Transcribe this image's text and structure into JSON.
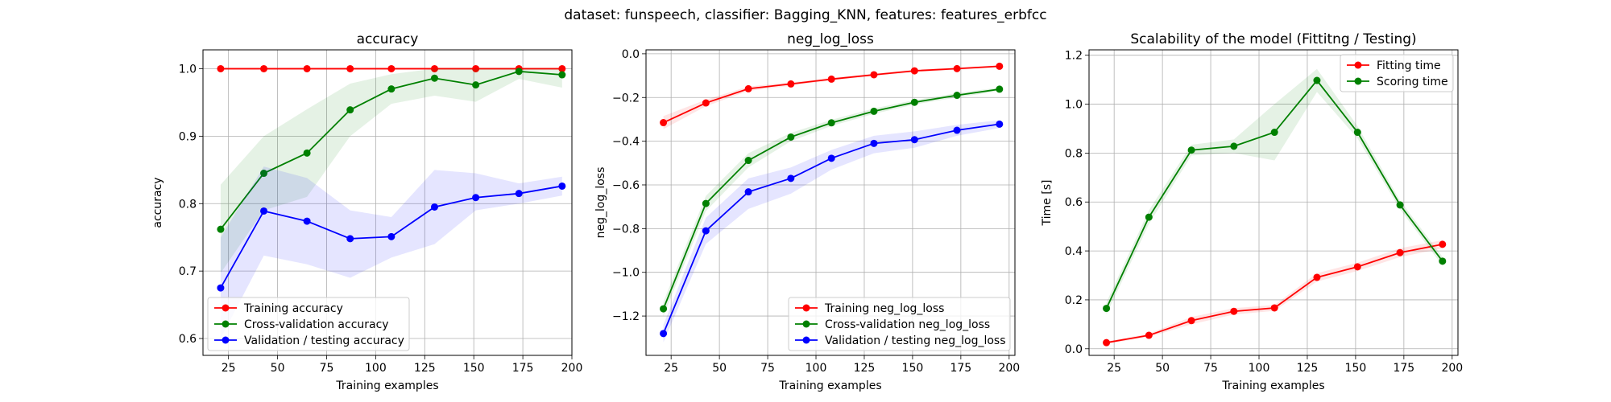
{
  "suptitle": "dataset: funspeech, classifier: Bagging_KNN, features: features_erbfcc",
  "colors": {
    "red": "#ff0000",
    "green": "#008000",
    "blue": "#0000ff"
  },
  "chart_data": [
    {
      "type": "line",
      "title": "accuracy",
      "xlabel": "Training examples",
      "ylabel": "accuracy",
      "xlim": [
        12,
        200
      ],
      "ylim": [
        0.575,
        1.028
      ],
      "xticks": [
        25,
        50,
        75,
        100,
        125,
        150,
        175,
        200
      ],
      "yticks": [
        0.6,
        0.7,
        0.8,
        0.9,
        1.0
      ],
      "grid": true,
      "legend_position": "lower-left",
      "x": [
        21,
        43,
        65,
        87,
        108,
        130,
        151,
        173,
        195
      ],
      "series": [
        {
          "name": "Training accuracy",
          "color": "#ff0000",
          "values": [
            1.0,
            1.0,
            1.0,
            1.0,
            1.0,
            1.0,
            1.0,
            1.0,
            1.0
          ],
          "lower": [
            0.998,
            0.998,
            0.998,
            0.998,
            0.998,
            0.998,
            0.998,
            0.998,
            0.998
          ],
          "upper": [
            1.002,
            1.002,
            1.002,
            1.002,
            1.002,
            1.002,
            1.002,
            1.002,
            1.002
          ]
        },
        {
          "name": "Cross-validation accuracy",
          "color": "#008000",
          "values": [
            0.762,
            0.845,
            0.875,
            0.939,
            0.97,
            0.986,
            0.976,
            0.996,
            0.991
          ],
          "lower": [
            0.697,
            0.79,
            0.81,
            0.9,
            0.948,
            0.96,
            0.951,
            0.985,
            0.972
          ],
          "upper": [
            0.828,
            0.9,
            0.94,
            0.978,
            0.992,
            1.0,
            1.0,
            1.0,
            1.0
          ]
        },
        {
          "name": "Validation / testing accuracy",
          "color": "#0000ff",
          "values": [
            0.675,
            0.789,
            0.774,
            0.748,
            0.751,
            0.795,
            0.809,
            0.815,
            0.826
          ],
          "lower": [
            0.6,
            0.723,
            0.71,
            0.69,
            0.72,
            0.74,
            0.79,
            0.8,
            0.812
          ],
          "upper": [
            0.75,
            0.855,
            0.838,
            0.79,
            0.78,
            0.85,
            0.845,
            0.83,
            0.84
          ]
        }
      ]
    },
    {
      "type": "line",
      "title": "neg_log_loss",
      "xlabel": "Training examples",
      "ylabel": "neg_log_loss",
      "xlim": [
        12,
        203
      ],
      "ylim": [
        -1.38,
        0.018
      ],
      "xticks": [
        25,
        50,
        75,
        100,
        125,
        150,
        175,
        200
      ],
      "yticks": [
        -1.2,
        -1.0,
        -0.8,
        -0.6,
        -0.4,
        -0.2,
        0.0
      ],
      "ytick_labels": [
        "−1.2",
        "−1.0",
        "−0.8",
        "−0.6",
        "−0.4",
        "−0.2",
        "0.0"
      ],
      "grid": true,
      "legend_position": "lower-right",
      "x": [
        21,
        43,
        65,
        87,
        108,
        130,
        151,
        173,
        195
      ],
      "series": [
        {
          "name": "Training neg_log_loss",
          "color": "#ff0000",
          "values": [
            -0.315,
            -0.225,
            -0.16,
            -0.138,
            -0.116,
            -0.096,
            -0.078,
            -0.068,
            -0.057
          ],
          "lower": [
            -0.345,
            -0.24,
            -0.17,
            -0.146,
            -0.122,
            -0.102,
            -0.084,
            -0.074,
            -0.062
          ],
          "upper": [
            -0.285,
            -0.21,
            -0.15,
            -0.13,
            -0.11,
            -0.09,
            -0.072,
            -0.062,
            -0.052
          ]
        },
        {
          "name": "Cross-validation neg_log_loss",
          "color": "#008000",
          "values": [
            -1.167,
            -0.685,
            -0.488,
            -0.381,
            -0.316,
            -0.263,
            -0.222,
            -0.19,
            -0.162
          ],
          "lower": [
            -1.2,
            -0.72,
            -0.52,
            -0.4,
            -0.33,
            -0.275,
            -0.232,
            -0.2,
            -0.17
          ],
          "upper": [
            -1.135,
            -0.65,
            -0.455,
            -0.362,
            -0.302,
            -0.25,
            -0.212,
            -0.18,
            -0.154
          ]
        },
        {
          "name": "Validation / testing neg_log_loss",
          "color": "#0000ff",
          "values": [
            -1.28,
            -0.81,
            -0.632,
            -0.57,
            -0.478,
            -0.41,
            -0.393,
            -0.35,
            -0.322
          ],
          "lower": [
            -1.32,
            -0.87,
            -0.71,
            -0.64,
            -0.53,
            -0.455,
            -0.43,
            -0.375,
            -0.34
          ],
          "upper": [
            -1.24,
            -0.75,
            -0.57,
            -0.52,
            -0.44,
            -0.375,
            -0.355,
            -0.325,
            -0.304
          ]
        }
      ]
    },
    {
      "type": "line",
      "title": "Scalability of the model (Fittitng / Testing)",
      "xlabel": "Training examples",
      "ylabel": "Time [s]",
      "xlim": [
        12,
        203
      ],
      "ylim": [
        -0.027,
        1.222
      ],
      "xticks": [
        25,
        50,
        75,
        100,
        125,
        150,
        175,
        200
      ],
      "yticks": [
        0.0,
        0.2,
        0.4,
        0.6,
        0.8,
        1.0,
        1.2
      ],
      "grid": true,
      "legend_position": "upper-right",
      "x": [
        21,
        43,
        65,
        87,
        108,
        130,
        151,
        173,
        195
      ],
      "series": [
        {
          "name": "Fitting time",
          "color": "#ff0000",
          "values": [
            0.025,
            0.055,
            0.115,
            0.153,
            0.167,
            0.292,
            0.335,
            0.393,
            0.427
          ],
          "lower": [
            0.02,
            0.048,
            0.1,
            0.14,
            0.155,
            0.275,
            0.318,
            0.375,
            0.41
          ],
          "upper": [
            0.03,
            0.062,
            0.13,
            0.166,
            0.179,
            0.309,
            0.352,
            0.411,
            0.444
          ]
        },
        {
          "name": "Scoring time",
          "color": "#008000",
          "values": [
            0.165,
            0.538,
            0.812,
            0.828,
            0.885,
            1.097,
            0.885,
            0.588,
            0.358
          ],
          "lower": [
            0.14,
            0.51,
            0.79,
            0.8,
            0.77,
            1.05,
            0.86,
            0.57,
            0.34
          ],
          "upper": [
            0.19,
            0.566,
            0.834,
            0.856,
            1.0,
            1.144,
            0.91,
            0.606,
            0.376
          ]
        }
      ]
    }
  ]
}
